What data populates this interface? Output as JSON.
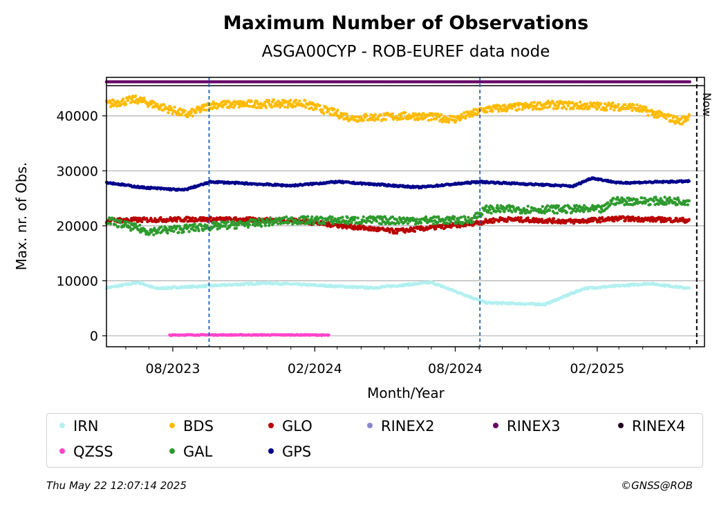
{
  "chart_data": {
    "type": "scatter",
    "title": "Maximum Number of Observations",
    "subtitle": "ASGA00CYP - ROB-EUREF data node",
    "xlabel": "Month/Year",
    "ylabel": "Max. nr. of Obs.",
    "x_range": [
      "2023-05-07",
      "2025-06-20"
    ],
    "ylim": [
      -2000,
      47000
    ],
    "yticks": [
      0,
      10000,
      20000,
      30000,
      40000
    ],
    "ytick_labels": [
      "0",
      "10000",
      "20000",
      "30000",
      "40000"
    ],
    "xtick_labels": [
      "08/2023",
      "02/2024",
      "08/2024",
      "02/2025"
    ],
    "xtick_dates": [
      "2023-08-01",
      "2024-02-01",
      "2024-08-01",
      "2025-02-01"
    ],
    "grid": "horizontal",
    "legend_position": "below",
    "vlines_dashed_blue": [
      "2023-09-17",
      "2024-09-02"
    ],
    "now_line": {
      "date": "2025-06-10",
      "label": "Now"
    },
    "rinex3_band_value": 46200,
    "series": [
      {
        "name": "IRN",
        "color": "#b3f0f0",
        "points": [
          [
            "2023-05-07",
            8700
          ],
          [
            "2023-06-18",
            9700
          ],
          [
            "2023-07-10",
            8600
          ],
          [
            "2023-12-01",
            9600
          ],
          [
            "2024-04-15",
            8700
          ],
          [
            "2024-07-01",
            9700
          ],
          [
            "2024-09-10",
            6000
          ],
          [
            "2024-11-25",
            5700
          ],
          [
            "2025-01-15",
            8600
          ],
          [
            "2025-04-10",
            9500
          ],
          [
            "2025-06-01",
            8600
          ]
        ]
      },
      {
        "name": "QZSS",
        "color": "#ff44cc",
        "points": [
          [
            "2023-07-28",
            100
          ],
          [
            "2023-08-12",
            150
          ],
          [
            "2024-01-25",
            150
          ],
          [
            "2024-02-20",
            100
          ]
        ]
      },
      {
        "name": "BDS",
        "color": "#ffbb00",
        "points": [
          [
            "2023-05-07",
            42100
          ],
          [
            "2023-06-15",
            43000
          ],
          [
            "2023-08-20",
            40200
          ],
          [
            "2023-09-20",
            42000
          ],
          [
            "2024-01-15",
            42300
          ],
          [
            "2024-03-20",
            39600
          ],
          [
            "2024-06-10",
            40000
          ],
          [
            "2024-08-01",
            39400
          ],
          [
            "2024-09-10",
            41200
          ],
          [
            "2024-12-01",
            42000
          ],
          [
            "2025-03-20",
            41600
          ],
          [
            "2025-05-20",
            39000
          ],
          [
            "2025-06-01",
            40000
          ]
        ]
      },
      {
        "name": "GLO",
        "color": "#b80000",
        "points": [
          [
            "2023-05-07",
            21000
          ],
          [
            "2023-09-01",
            21200
          ],
          [
            "2024-01-01",
            21000
          ],
          [
            "2024-05-15",
            19000
          ],
          [
            "2024-08-10",
            20200
          ],
          [
            "2024-10-01",
            21200
          ],
          [
            "2025-01-01",
            20800
          ],
          [
            "2025-03-01",
            21300
          ],
          [
            "2025-06-01",
            21000
          ]
        ]
      },
      {
        "name": "RINEX2",
        "color": "#8888cc",
        "points": []
      },
      {
        "name": "RINEX3",
        "color": "#660066",
        "points": [
          [
            "2023-05-07",
            46200
          ],
          [
            "2025-06-01",
            46200
          ]
        ]
      },
      {
        "name": "RINEX4",
        "color": "#220022",
        "points": []
      },
      {
        "name": "GAL",
        "color": "#2e9a2e",
        "points": [
          [
            "2023-05-07",
            21000
          ],
          [
            "2023-07-01",
            19000
          ],
          [
            "2024-01-01",
            21000
          ],
          [
            "2024-08-20",
            21000
          ],
          [
            "2024-09-10",
            23000
          ],
          [
            "2025-02-10",
            23000
          ],
          [
            "2025-02-20",
            24500
          ],
          [
            "2025-06-01",
            24500
          ]
        ]
      },
      {
        "name": "GPS",
        "color": "#00008b",
        "points": [
          [
            "2023-05-07",
            27900
          ],
          [
            "2023-06-20",
            27000
          ],
          [
            "2023-08-15",
            26500
          ],
          [
            "2023-09-20",
            28000
          ],
          [
            "2024-01-01",
            27300
          ],
          [
            "2024-03-01",
            28000
          ],
          [
            "2024-06-15",
            27000
          ],
          [
            "2024-09-01",
            28000
          ],
          [
            "2025-01-01",
            27200
          ],
          [
            "2025-01-25",
            28700
          ],
          [
            "2025-03-01",
            27800
          ],
          [
            "2025-06-01",
            28100
          ]
        ]
      }
    ]
  },
  "legend": {
    "items": [
      "IRN",
      "BDS",
      "GLO",
      "RINEX2",
      "RINEX3",
      "RINEX4",
      "QZSS",
      "GAL",
      "GPS"
    ],
    "colors": [
      "#b3f0f0",
      "#ffbb00",
      "#b80000",
      "#8888cc",
      "#660066",
      "#220022",
      "#ff44cc",
      "#2e9a2e",
      "#00008b"
    ]
  },
  "footer": {
    "timestamp": "Thu May 22 12:07:14 2025",
    "copyright": "©GNSS@ROB"
  }
}
